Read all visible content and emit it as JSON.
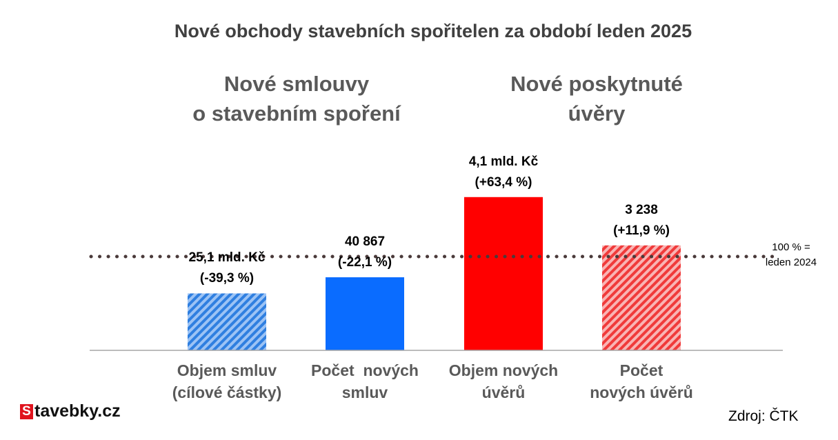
{
  "chart_data": {
    "type": "bar",
    "title": "Nové obchody stavebních spořitelen za období leden 2025",
    "groups": [
      {
        "title_lines": [
          "Nové smlouvy",
          "o stavebním spoření"
        ]
      },
      {
        "title_lines": [
          "Nové poskytnuté",
          "úvěry"
        ]
      }
    ],
    "categories": [
      {
        "lines": [
          "Objem smluv",
          "(cílové částky)"
        ],
        "value_label": "25,1 mld. Kč",
        "change_label": "(-39,3 %)",
        "index_pct": 60.7,
        "color": "#2f7fe0",
        "hatched": true
      },
      {
        "lines": [
          "Počet  nových",
          "smluv"
        ],
        "value_label": "40 867",
        "change_label": "(-22,1 %)",
        "index_pct": 77.9,
        "color": "#0a6cff",
        "hatched": false
      },
      {
        "lines": [
          "Objem nových",
          "úvěrů"
        ],
        "value_label": "4,1 mld. Kč",
        "change_label": "(+63,4 %)",
        "index_pct": 163.4,
        "color": "#ff0000",
        "hatched": false
      },
      {
        "lines": [
          "Počet",
          "nových úvěrů"
        ],
        "value_label": "3 238",
        "change_label": "(+11,9 %)",
        "index_pct": 111.9,
        "color": "#f03a3a",
        "hatched": true
      }
    ],
    "reference": {
      "value_pct": 100,
      "label_lines": [
        "100 % =",
        "leden 2024"
      ]
    },
    "ylim": [
      0,
      165
    ]
  },
  "branding": {
    "logo_letter": "S",
    "logo_rest": "tavebky.cz"
  },
  "source": "Zdroj: ČTK"
}
